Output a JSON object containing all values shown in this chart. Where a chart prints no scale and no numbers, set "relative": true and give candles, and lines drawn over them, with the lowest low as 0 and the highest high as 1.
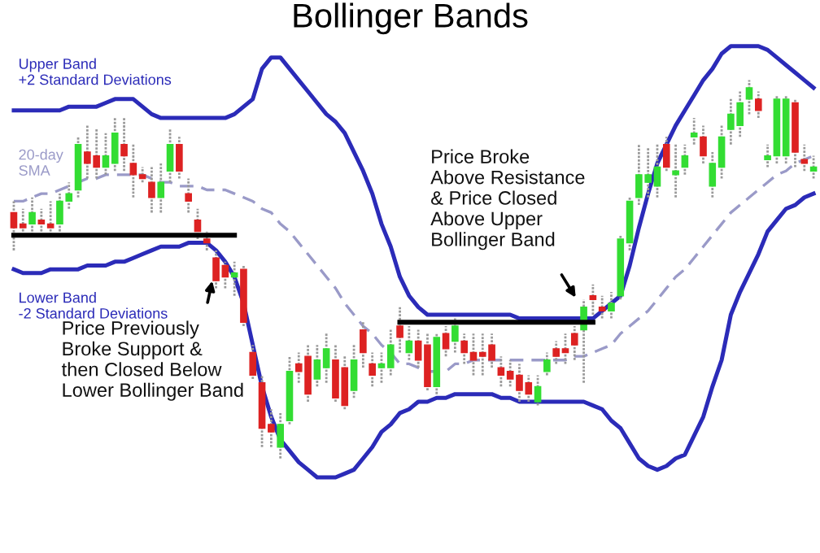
{
  "chart_data": {
    "type": "candlestick",
    "title": "Bollinger Bands",
    "relative": true,
    "categories": [
      null,
      null,
      null,
      null,
      null,
      null,
      null,
      null,
      null,
      null,
      null,
      null,
      null,
      null,
      null,
      null,
      null,
      null,
      null,
      null,
      null,
      null,
      null,
      null,
      null,
      null,
      null,
      null,
      null,
      null,
      null,
      null,
      null,
      null,
      null,
      null,
      null,
      null,
      null,
      null,
      null,
      null,
      null,
      null,
      null,
      null,
      null,
      null,
      null,
      null,
      null,
      null,
      null,
      null,
      null,
      null,
      null,
      null,
      null,
      null,
      null,
      null,
      null,
      null,
      null,
      null,
      null,
      null,
      null,
      null,
      null,
      null,
      null,
      null,
      null,
      null,
      null,
      null,
      null,
      null,
      null,
      null,
      null,
      null,
      null,
      null,
      null,
      null
    ],
    "ohlc": [
      [
        0.65,
        0.68,
        0.55,
        0.61
      ],
      [
        0.62,
        0.66,
        0.6,
        0.61
      ],
      [
        0.62,
        0.69,
        0.59,
        0.65
      ],
      [
        0.63,
        0.66,
        0.6,
        0.62
      ],
      [
        0.62,
        0.68,
        0.59,
        0.61
      ],
      [
        0.62,
        0.7,
        0.6,
        0.68
      ],
      [
        0.68,
        0.73,
        0.66,
        0.7
      ],
      [
        0.71,
        0.85,
        0.69,
        0.83
      ],
      [
        0.81,
        0.88,
        0.74,
        0.78
      ],
      [
        0.8,
        0.87,
        0.74,
        0.77
      ],
      [
        0.77,
        0.86,
        0.75,
        0.8
      ],
      [
        0.78,
        0.9,
        0.76,
        0.86
      ],
      [
        0.83,
        0.9,
        0.76,
        0.8
      ],
      [
        0.78,
        0.83,
        0.69,
        0.75
      ],
      [
        0.75,
        0.77,
        0.73,
        0.74
      ],
      [
        0.73,
        0.77,
        0.65,
        0.69
      ],
      [
        0.69,
        0.78,
        0.65,
        0.73
      ],
      [
        0.76,
        0.87,
        0.73,
        0.83
      ],
      [
        0.83,
        0.85,
        0.74,
        0.76
      ],
      [
        0.7,
        0.74,
        0.65,
        0.68
      ],
      [
        0.63,
        0.66,
        0.58,
        0.6
      ],
      [
        0.58,
        0.6,
        0.55,
        0.57
      ],
      [
        0.53,
        0.55,
        0.45,
        0.47
      ],
      [
        0.51,
        0.52,
        0.45,
        0.48
      ],
      [
        0.48,
        0.52,
        0.43,
        0.49
      ],
      [
        0.5,
        0.51,
        0.35,
        0.36
      ],
      [
        0.28,
        0.3,
        0.21,
        0.22
      ],
      [
        0.2,
        0.22,
        0.03,
        0.08
      ],
      [
        0.09,
        0.13,
        0.03,
        0.07
      ],
      [
        0.03,
        0.12,
        0,
        0.09
      ],
      [
        0.1,
        0.27,
        0.09,
        0.23
      ],
      [
        0.25,
        0.28,
        0.2,
        0.23
      ],
      [
        0.27,
        0.3,
        0.15,
        0.17
      ],
      [
        0.21,
        0.3,
        0.19,
        0.26
      ],
      [
        0.24,
        0.33,
        0.2,
        0.29
      ],
      [
        0.26,
        0.3,
        0.15,
        0.16
      ],
      [
        0.24,
        0.27,
        0.13,
        0.14
      ],
      [
        0.18,
        0.3,
        0.16,
        0.26
      ],
      [
        0.34,
        0.36,
        0.24,
        0.28
      ],
      [
        0.25,
        0.28,
        0.19,
        0.22
      ],
      [
        0.24,
        0.28,
        0.2,
        0.25
      ],
      [
        0.24,
        0.34,
        0.22,
        0.3
      ],
      [
        0.35,
        0.4,
        0.28,
        0.32
      ],
      [
        0.28,
        0.35,
        0.26,
        0.31
      ],
      [
        0.31,
        0.34,
        0.24,
        0.26
      ],
      [
        0.3,
        0.33,
        0.18,
        0.19
      ],
      [
        0.19,
        0.33,
        0.17,
        0.32
      ],
      [
        0.33,
        0.35,
        0.27,
        0.29
      ],
      [
        0.31,
        0.37,
        0.28,
        0.35
      ],
      [
        0.31,
        0.33,
        0.25,
        0.28
      ],
      [
        0.28,
        0.33,
        0.22,
        0.26
      ],
      [
        0.28,
        0.33,
        0.22,
        0.27
      ],
      [
        0.3,
        0.33,
        0.24,
        0.26
      ],
      [
        0.24,
        0.27,
        0.19,
        0.22
      ],
      [
        0.23,
        0.26,
        0.19,
        0.21
      ],
      [
        0.22,
        0.25,
        0.15,
        0.18
      ],
      [
        0.2,
        0.22,
        0.15,
        0.17
      ],
      [
        0.15,
        0.22,
        0.14,
        0.19
      ],
      [
        0.23,
        0.28,
        0.22,
        0.26
      ],
      [
        0.29,
        0.31,
        0.25,
        0.27
      ],
      [
        0.29,
        0.33,
        0.25,
        0.28
      ],
      [
        0.33,
        0.35,
        0.26,
        0.3
      ],
      [
        0.34,
        0.42,
        0.2,
        0.4
      ],
      [
        0.43,
        0.46,
        0.38,
        0.42
      ],
      [
        0.4,
        0.43,
        0.37,
        0.39
      ],
      [
        0.39,
        0.44,
        0.37,
        0.41
      ],
      [
        0.43,
        0.59,
        0.42,
        0.58
      ],
      [
        0.57,
        0.69,
        0.55,
        0.68
      ],
      [
        0.69,
        0.83,
        0.67,
        0.75
      ],
      [
        0.73,
        0.82,
        0.69,
        0.75
      ],
      [
        0.72,
        0.83,
        0.69,
        0.77
      ],
      [
        0.83,
        0.85,
        0.76,
        0.77
      ],
      [
        0.75,
        0.83,
        0.69,
        0.76
      ],
      [
        0.77,
        0.83,
        0.75,
        0.8
      ],
      [
        0.85,
        0.9,
        0.83,
        0.86
      ],
      [
        0.85,
        0.88,
        0.78,
        0.8
      ],
      [
        0.72,
        0.81,
        0.69,
        0.78
      ],
      [
        0.77,
        0.88,
        0.74,
        0.85
      ],
      [
        0.87,
        0.95,
        0.83,
        0.91
      ],
      [
        0.88,
        0.97,
        0.85,
        0.94
      ],
      [
        0.95,
        1,
        0.91,
        0.98
      ],
      [
        0.95,
        0.97,
        0.9,
        0.92
      ],
      [
        0.79,
        0.83,
        0.77,
        0.8
      ],
      [
        0.8,
        0.96,
        0.78,
        0.95
      ],
      [
        0.8,
        0.96,
        0.78,
        0.95
      ],
      [
        0.94,
        0.95,
        0.77,
        0.81
      ],
      [
        0.79,
        0.83,
        0.76,
        0.78
      ],
      [
        0.76,
        0.8,
        0.74,
        0.77
      ]
    ],
    "colors": [
      "#dd2222",
      "#dd2222",
      "#33dd33",
      "#dd2222",
      "#dd2222",
      "#33dd33",
      "#33dd33",
      "#33dd33",
      "#dd2222",
      "#dd2222",
      "#33dd33",
      "#33dd33",
      "#dd2222",
      "#dd2222",
      "#dd2222",
      "#dd2222",
      "#33dd33",
      "#33dd33",
      "#dd2222",
      "#dd2222",
      "#dd2222",
      "#dd2222",
      "#dd2222",
      "#dd2222",
      "#33dd33",
      "#dd2222",
      "#dd2222",
      "#dd2222",
      "#dd2222",
      "#33dd33",
      "#33dd33",
      "#dd2222",
      "#dd2222",
      "#33dd33",
      "#33dd33",
      "#dd2222",
      "#dd2222",
      "#33dd33",
      "#dd2222",
      "#dd2222",
      "#33dd33",
      "#33dd33",
      "#dd2222",
      "#33dd33",
      "#dd2222",
      "#dd2222",
      "#33dd33",
      "#dd2222",
      "#33dd33",
      "#dd2222",
      "#dd2222",
      "#dd2222",
      "#dd2222",
      "#dd2222",
      "#dd2222",
      "#dd2222",
      "#dd2222",
      "#33dd33",
      "#33dd33",
      "#dd2222",
      "#dd2222",
      "#dd2222",
      "#33dd33",
      "#dd2222",
      "#dd2222",
      "#33dd33",
      "#33dd33",
      "#33dd33",
      "#33dd33",
      "#33dd33",
      "#33dd33",
      "#dd2222",
      "#33dd33",
      "#33dd33",
      "#33dd33",
      "#dd2222",
      "#33dd33",
      "#33dd33",
      "#33dd33",
      "#33dd33",
      "#33dd33",
      "#dd2222",
      "#33dd33",
      "#33dd33",
      "#33dd33",
      "#dd2222",
      "#dd2222",
      "#33dd33"
    ],
    "series": [
      {
        "name": "Upper Band\n+2 Standard Deviations",
        "type": "line",
        "color": "#2b2bb8",
        "values": [
          0.92,
          0.92,
          0.92,
          0.92,
          0.92,
          0.92,
          0.93,
          0.93,
          0.93,
          0.93,
          0.94,
          0.95,
          0.95,
          0.95,
          0.93,
          0.91,
          0.9,
          0.9,
          0.9,
          0.9,
          0.9,
          0.9,
          0.9,
          0.9,
          0.91,
          0.93,
          0.95,
          1.03,
          1.06,
          1.06,
          1.03,
          1.0,
          0.97,
          0.94,
          0.91,
          0.89,
          0.86,
          0.81,
          0.76,
          0.7,
          0.62,
          0.56,
          0.48,
          0.43,
          0.4,
          0.38,
          0.38,
          0.38,
          0.38,
          0.38,
          0.38,
          0.38,
          0.38,
          0.38,
          0.38,
          0.37,
          0.37,
          0.37,
          0.37,
          0.37,
          0.37,
          0.37,
          0.37,
          0.37,
          0.39,
          0.41,
          0.43,
          0.51,
          0.61,
          0.7,
          0.78,
          0.83,
          0.88,
          0.92,
          0.96,
          1.0,
          1.03,
          1.07,
          1.09,
          1.09,
          1.09,
          1.09,
          1.08,
          1.06,
          1.04,
          1.02,
          1.0,
          0.98
        ]
      },
      {
        "name": "20-day\nSMA",
        "type": "line",
        "color": "#9a9ac8",
        "line_style": "dashed",
        "values": [
          0.68,
          0.68,
          0.69,
          0.7,
          0.7,
          0.71,
          0.72,
          0.73,
          0.74,
          0.74,
          0.75,
          0.75,
          0.75,
          0.75,
          0.75,
          0.74,
          0.73,
          0.73,
          0.72,
          0.72,
          0.72,
          0.71,
          0.71,
          0.71,
          0.7,
          0.69,
          0.68,
          0.66,
          0.65,
          0.62,
          0.6,
          0.57,
          0.54,
          0.51,
          0.48,
          0.45,
          0.41,
          0.38,
          0.35,
          0.33,
          0.3,
          0.28,
          0.25,
          0.25,
          0.24,
          0.23,
          0.23,
          0.23,
          0.25,
          0.25,
          0.26,
          0.26,
          0.26,
          0.26,
          0.26,
          0.26,
          0.26,
          0.26,
          0.26,
          0.26,
          0.26,
          0.27,
          0.27,
          0.28,
          0.29,
          0.3,
          0.33,
          0.35,
          0.37,
          0.39,
          0.42,
          0.45,
          0.48,
          0.5,
          0.53,
          0.56,
          0.59,
          0.62,
          0.65,
          0.67,
          0.69,
          0.71,
          0.73,
          0.75,
          0.76,
          0.78,
          0.79,
          0.8
        ]
      },
      {
        "name": "Lower Band\n-2 Standard Deviations",
        "type": "line",
        "color": "#2b2bb8",
        "values": [
          0.5,
          0.49,
          0.49,
          0.49,
          0.5,
          0.5,
          0.5,
          0.5,
          0.51,
          0.51,
          0.51,
          0.52,
          0.52,
          0.53,
          0.54,
          0.55,
          0.56,
          0.56,
          0.56,
          0.57,
          0.57,
          0.57,
          0.55,
          0.52,
          0.48,
          0.41,
          0.3,
          0.19,
          0.11,
          0.05,
          0.02,
          -0.01,
          -0.03,
          -0.05,
          -0.05,
          -0.05,
          -0.04,
          -0.03,
          0.0,
          0.03,
          0.07,
          0.09,
          0.12,
          0.13,
          0.15,
          0.15,
          0.16,
          0.16,
          0.17,
          0.17,
          0.17,
          0.17,
          0.17,
          0.16,
          0.16,
          0.15,
          0.15,
          0.15,
          0.15,
          0.15,
          0.15,
          0.15,
          0.15,
          0.14,
          0.13,
          0.1,
          0.08,
          0.04,
          0.0,
          -0.02,
          -0.03,
          -0.02,
          0.0,
          0.01,
          0.06,
          0.11,
          0.19,
          0.26,
          0.38,
          0.44,
          0.49,
          0.54,
          0.6,
          0.63,
          0.66,
          0.67,
          0.69,
          0.7
        ]
      },
      {
        "type": "line",
        "color": "#000000",
        "values": [
          0.59,
          0.59,
          0.59,
          0.59,
          0.59,
          0.59,
          0.59,
          0.59,
          0.59,
          0.59,
          0.59,
          0.59,
          0.59,
          0.59,
          0.59,
          0.59,
          0.59,
          0.59,
          0.59,
          0.59,
          0.59,
          0.59,
          0.59,
          0.59,
          0.59,
          null,
          null,
          null,
          null,
          null,
          null,
          null,
          null,
          null,
          null,
          null,
          null,
          null,
          null,
          null,
          null,
          null,
          null,
          null,
          null,
          null,
          null,
          null,
          null,
          null,
          null,
          null,
          null,
          null,
          null,
          null,
          null,
          null,
          null,
          null,
          null,
          null,
          null,
          null,
          null,
          null,
          null,
          null,
          null,
          null,
          null,
          null,
          null,
          null,
          null,
          null,
          null,
          null,
          null,
          null,
          null,
          null,
          null,
          null,
          null,
          null,
          null,
          null
        ]
      },
      {
        "type": "line",
        "color": "#000000",
        "values": [
          null,
          null,
          null,
          null,
          null,
          null,
          null,
          null,
          null,
          null,
          null,
          null,
          null,
          null,
          null,
          null,
          null,
          null,
          null,
          null,
          null,
          null,
          null,
          null,
          null,
          null,
          null,
          null,
          null,
          null,
          null,
          null,
          null,
          null,
          null,
          null,
          null,
          null,
          null,
          null,
          null,
          null,
          0.36,
          0.36,
          0.36,
          0.36,
          0.36,
          0.36,
          0.36,
          0.36,
          0.36,
          0.36,
          0.36,
          0.36,
          0.36,
          0.36,
          0.36,
          0.36,
          0.36,
          0.36,
          0.36,
          0.36,
          0.36,
          0.36,
          null,
          null,
          null,
          null,
          null,
          null,
          null,
          null,
          null,
          null,
          null,
          null,
          null,
          null,
          null,
          null,
          null,
          null,
          null,
          null,
          null,
          null,
          null,
          null
        ]
      }
    ],
    "annotations": [
      "Price Previously\nBroke Support &\nthen Closed Below\nLower Bollinger Band",
      "Price Broke\nAbove Resistance\n& Price Closed\nAbove Upper\nBollinger Band"
    ]
  }
}
